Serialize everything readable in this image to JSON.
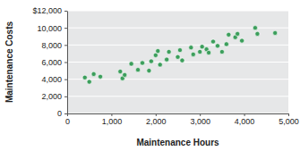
{
  "chart_data": {
    "type": "scatter",
    "x_label": "Maintenance Hours",
    "y_label": "Maintenance Costs",
    "x": [
      400,
      500,
      600,
      750,
      1200,
      1250,
      1300,
      1450,
      1600,
      1700,
      1850,
      1900,
      2000,
      2050,
      2100,
      2250,
      2300,
      2500,
      2550,
      2600,
      2800,
      2850,
      3000,
      3050,
      3150,
      3200,
      3300,
      3400,
      3500,
      3600,
      3650,
      3800,
      3850,
      3950,
      4250,
      4300,
      4700
    ],
    "values": [
      4200,
      3700,
      4600,
      4300,
      4900,
      4100,
      4500,
      5800,
      5100,
      5900,
      5000,
      6100,
      6800,
      7300,
      5700,
      6300,
      7200,
      6600,
      7400,
      6200,
      7700,
      6900,
      7200,
      7800,
      7500,
      7100,
      8400,
      7900,
      7200,
      8100,
      9200,
      8900,
      9300,
      8500,
      10000,
      9300,
      9400
    ],
    "color": "#3c9e5c",
    "marker": "circle",
    "xlim": [
      0,
      5000
    ],
    "xticks": [
      0,
      {
        "value": 1000,
        "label": "1,000"
      },
      {
        "value": 2000,
        "label": "2,000"
      },
      {
        "value": 3000,
        "label": "3,000"
      },
      {
        "value": 4000,
        "label": "4,000"
      },
      {
        "value": 5000,
        "label": "5,000"
      }
    ],
    "ylim": [
      0,
      12000
    ],
    "yticks": [
      0,
      {
        "value": 2000,
        "label": "2,000"
      },
      {
        "value": 4000,
        "label": "4,000"
      },
      {
        "value": 6000,
        "label": "6,000"
      },
      {
        "value": 8000,
        "label": "8,000"
      },
      {
        "value": 10000,
        "label": "10,000"
      },
      {
        "value": 12000,
        "label": "$12,000"
      }
    ],
    "grid": true
  }
}
